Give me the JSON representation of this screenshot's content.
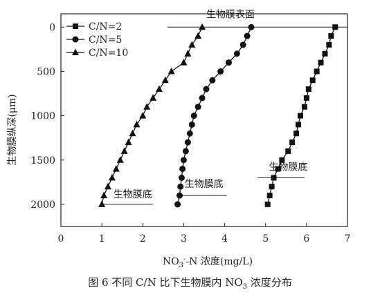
{
  "chart_data": {
    "type": "line",
    "xlabel": "NO3--N 浓度(mg/L)",
    "ylabel": "生物膜纵深(μm)",
    "xlim": [
      0,
      7
    ],
    "ylim": [
      2250,
      -150
    ],
    "y_inverted": true,
    "x_ticks": [
      "0",
      "1",
      "2",
      "3",
      "4",
      "5",
      "6",
      "7"
    ],
    "y_ticks": [
      "0",
      "500",
      "1000",
      "1500",
      "2000"
    ],
    "grid": false,
    "legend_position": "top-left",
    "series": [
      {
        "name": "C/N=2",
        "marker": "square",
        "points": [
          [
            6.7,
            0
          ],
          [
            6.6,
            100
          ],
          [
            6.55,
            200
          ],
          [
            6.45,
            300
          ],
          [
            6.35,
            400
          ],
          [
            6.25,
            500
          ],
          [
            6.15,
            600
          ],
          [
            6.05,
            700
          ],
          [
            6.0,
            800
          ],
          [
            5.95,
            900
          ],
          [
            5.85,
            1000
          ],
          [
            5.8,
            1100
          ],
          [
            5.75,
            1200
          ],
          [
            5.65,
            1300
          ],
          [
            5.55,
            1400
          ],
          [
            5.4,
            1500
          ],
          [
            5.3,
            1600
          ],
          [
            5.2,
            1700
          ],
          [
            5.15,
            1800
          ],
          [
            5.1,
            1900
          ],
          [
            5.05,
            2000
          ]
        ]
      },
      {
        "name": "C/N=5",
        "marker": "circle",
        "points": [
          [
            4.65,
            0
          ],
          [
            4.55,
            100
          ],
          [
            4.45,
            200
          ],
          [
            4.3,
            300
          ],
          [
            4.1,
            400
          ],
          [
            3.9,
            500
          ],
          [
            3.7,
            600
          ],
          [
            3.55,
            700
          ],
          [
            3.45,
            800
          ],
          [
            3.35,
            900
          ],
          [
            3.25,
            1000
          ],
          [
            3.2,
            1100
          ],
          [
            3.15,
            1200
          ],
          [
            3.1,
            1300
          ],
          [
            3.05,
            1400
          ],
          [
            3.0,
            1500
          ],
          [
            2.97,
            1600
          ],
          [
            2.95,
            1700
          ],
          [
            2.92,
            1800
          ],
          [
            2.9,
            1900
          ],
          [
            2.85,
            2000
          ]
        ]
      },
      {
        "name": "C/N=10",
        "marker": "triangle",
        "points": [
          [
            3.45,
            0
          ],
          [
            3.35,
            100
          ],
          [
            3.2,
            200
          ],
          [
            3.1,
            300
          ],
          [
            3.0,
            400
          ],
          [
            2.7,
            500
          ],
          [
            2.55,
            600
          ],
          [
            2.4,
            700
          ],
          [
            2.25,
            800
          ],
          [
            2.1,
            900
          ],
          [
            2.0,
            1000
          ],
          [
            1.85,
            1100
          ],
          [
            1.75,
            1200
          ],
          [
            1.65,
            1300
          ],
          [
            1.55,
            1400
          ],
          [
            1.45,
            1500
          ],
          [
            1.35,
            1600
          ],
          [
            1.25,
            1700
          ],
          [
            1.15,
            1800
          ],
          [
            1.05,
            1900
          ],
          [
            1.0,
            2000
          ]
        ]
      }
    ],
    "annotations": [
      {
        "id": "surface",
        "text": "生物膜表面",
        "line_x": [
          2.6,
          7.0
        ],
        "line_y": 0
      },
      {
        "id": "bottom-cn2",
        "text": "生物膜底",
        "line_x": [
          4.8,
          5.95
        ],
        "line_y": 1700
      },
      {
        "id": "bottom-cn5",
        "text": "生物膜底",
        "line_x": [
          2.9,
          4.05
        ],
        "line_y": 1900
      },
      {
        "id": "bottom-cn10",
        "text": "生物膜底",
        "line_x": [
          1.0,
          2.25
        ],
        "line_y": 2000
      }
    ]
  },
  "caption": {
    "prefix": "图 6   不同 C/N 比下生物膜内 NO",
    "sub": "3",
    "suffix": " 浓度分布"
  }
}
